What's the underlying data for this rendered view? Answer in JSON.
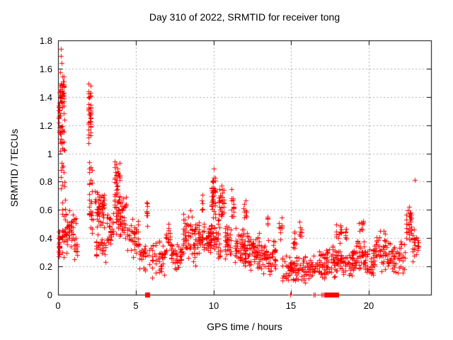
{
  "chart_data": {
    "type": "scatter",
    "title": "Day 310 of 2022, SRMTID for receiver tong",
    "xlabel": "GPS time / hours",
    "ylabel": "SRMTID / TECUs",
    "xlim": [
      0,
      24
    ],
    "ylim": [
      0,
      1.8
    ],
    "xticks": [
      0,
      5,
      10,
      15,
      20
    ],
    "xtick_labels": [
      "0",
      "5",
      "10",
      "15",
      "20"
    ],
    "yticks": [
      0,
      0.2,
      0.4,
      0.6,
      0.8,
      1,
      1.2,
      1.4,
      1.6,
      1.8
    ],
    "ytick_labels": [
      "0",
      "0.2",
      "0.4",
      "0.6",
      "0.8",
      "1",
      "1.2",
      "1.4",
      "1.6",
      "1.8"
    ],
    "grid": true,
    "legend": "none",
    "marker": {
      "glyph": "+",
      "color": "#ff0000",
      "size": 7
    },
    "frame_color": "#000000",
    "grid_color": "#a8a8a8",
    "background_color": "#ffffff",
    "clusters_format": [
      "t_start_hours",
      "t_end_hours",
      "y_min_TECUs",
      "y_max_TECUs",
      "n_points"
    ],
    "clusters": [
      [
        0.0,
        0.15,
        0.25,
        0.5,
        20
      ],
      [
        0.0,
        0.15,
        1.1,
        1.45,
        18
      ],
      [
        0.1,
        0.4,
        1.28,
        1.58,
        40
      ],
      [
        0.1,
        0.45,
        0.95,
        1.3,
        22
      ],
      [
        0.15,
        0.45,
        0.72,
        0.95,
        10
      ],
      [
        0.2,
        0.75,
        0.25,
        0.7,
        45
      ],
      [
        0.8,
        1.2,
        0.28,
        0.62,
        22
      ],
      [
        1.0,
        1.3,
        0.2,
        0.45,
        12
      ],
      [
        1.9,
        2.15,
        1.0,
        1.6,
        40
      ],
      [
        1.95,
        2.25,
        0.38,
        1.0,
        30
      ],
      [
        2.35,
        3.0,
        0.45,
        0.78,
        55
      ],
      [
        2.4,
        3.1,
        0.22,
        0.45,
        28
      ],
      [
        3.1,
        3.6,
        0.3,
        0.62,
        30
      ],
      [
        3.6,
        4.0,
        0.55,
        0.97,
        40
      ],
      [
        3.7,
        4.4,
        0.38,
        0.72,
        55
      ],
      [
        4.4,
        5.2,
        0.22,
        0.55,
        38
      ],
      [
        5.2,
        5.65,
        0.15,
        0.4,
        25
      ],
      [
        5.68,
        5.76,
        0.45,
        0.72,
        9
      ],
      [
        5.8,
        6.9,
        0.12,
        0.4,
        50
      ],
      [
        6.9,
        7.25,
        0.28,
        0.52,
        16
      ],
      [
        7.25,
        8.0,
        0.15,
        0.38,
        42
      ],
      [
        8.0,
        8.65,
        0.25,
        0.6,
        48
      ],
      [
        8.65,
        9.45,
        0.2,
        0.55,
        52
      ],
      [
        9.2,
        9.35,
        0.55,
        0.75,
        6
      ],
      [
        9.5,
        9.85,
        0.25,
        0.5,
        30
      ],
      [
        9.85,
        10.15,
        0.5,
        0.97,
        40
      ],
      [
        9.8,
        10.45,
        0.25,
        0.55,
        42
      ],
      [
        10.3,
        10.7,
        0.5,
        0.8,
        30
      ],
      [
        10.7,
        11.15,
        0.25,
        0.5,
        35
      ],
      [
        11.1,
        11.35,
        0.5,
        0.78,
        15
      ],
      [
        11.35,
        12.0,
        0.2,
        0.5,
        52
      ],
      [
        11.9,
        12.15,
        0.5,
        0.68,
        10
      ],
      [
        12.0,
        13.0,
        0.15,
        0.45,
        75
      ],
      [
        13.0,
        14.0,
        0.12,
        0.4,
        65
      ],
      [
        13.4,
        13.55,
        0.42,
        0.62,
        8
      ],
      [
        14.15,
        14.45,
        0.35,
        0.62,
        10
      ],
      [
        14.4,
        15.4,
        0.08,
        0.3,
        58
      ],
      [
        15.05,
        15.35,
        0.3,
        0.5,
        10
      ],
      [
        15.5,
        15.7,
        0.3,
        0.55,
        8
      ],
      [
        15.4,
        16.4,
        0.06,
        0.3,
        52
      ],
      [
        16.4,
        17.4,
        0.08,
        0.32,
        56
      ],
      [
        17.4,
        18.3,
        0.1,
        0.38,
        56
      ],
      [
        17.85,
        18.25,
        0.38,
        0.52,
        12
      ],
      [
        18.3,
        19.2,
        0.1,
        0.35,
        50
      ],
      [
        18.45,
        18.6,
        0.35,
        0.5,
        6
      ],
      [
        19.2,
        19.7,
        0.15,
        0.42,
        30
      ],
      [
        19.3,
        19.65,
        0.4,
        0.56,
        9
      ],
      [
        19.7,
        20.3,
        0.12,
        0.35,
        40
      ],
      [
        20.3,
        21.2,
        0.15,
        0.47,
        55
      ],
      [
        21.2,
        22.35,
        0.12,
        0.4,
        62
      ],
      [
        22.35,
        22.75,
        0.35,
        0.66,
        30
      ],
      [
        22.75,
        23.2,
        0.22,
        0.48,
        24
      ]
    ],
    "outlier_points": [
      [
        0.18,
        1.74
      ],
      [
        0.2,
        1.69
      ],
      [
        0.24,
        1.64
      ],
      [
        22.95,
        0.81
      ]
    ],
    "zero_value_markers": {
      "plus_xs": [
        14.92,
        16.45,
        16.55,
        16.92,
        17.02,
        17.12
      ],
      "square_xs": [
        5.72,
        17.3,
        17.38,
        17.46,
        17.62,
        17.9
      ]
    }
  }
}
